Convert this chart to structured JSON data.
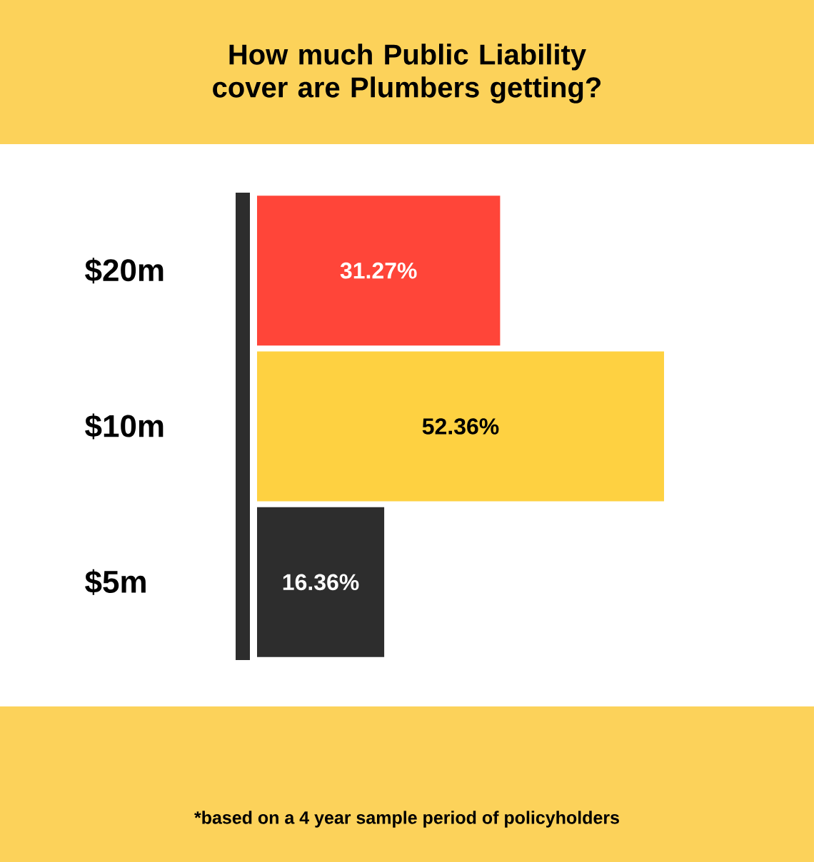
{
  "chart_data": {
    "type": "bar",
    "orientation": "horizontal",
    "title": "How much Public Liability cover are Plumbers getting?",
    "categories": [
      "$20m",
      "$10m",
      "$5m"
    ],
    "values": [
      31.27,
      52.36,
      16.36
    ],
    "colors": [
      "#ff4539",
      "#fed141",
      "#2d2d2d"
    ],
    "value_labels": [
      "31.27%",
      "52.36%",
      "16.36%"
    ],
    "annotations": [
      "*based on a 4 year sample period of policyholders"
    ]
  }
}
